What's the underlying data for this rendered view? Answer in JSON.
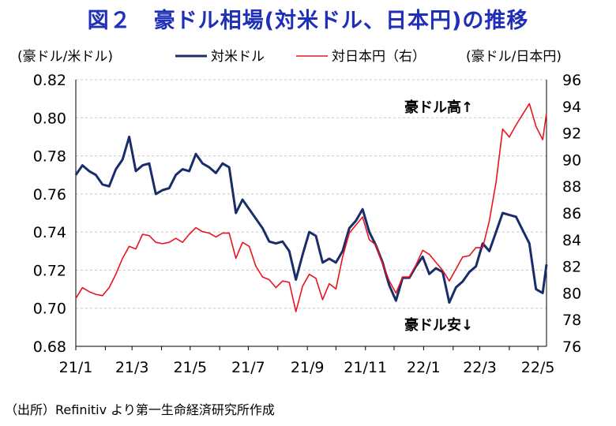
{
  "title": "図２　豪ドル相場(対米ドル、日本円)の推移",
  "source": "（出所）Refinitiv より第一生命経済研究所作成",
  "chart_data": {
    "type": "line",
    "left_axis_label": "(豪ドル/米ドル)",
    "right_axis_label": "(豪ドル/日本円)",
    "left_ylim": [
      0.68,
      0.82
    ],
    "left_ticks": [
      "0.68",
      "0.70",
      "0.72",
      "0.74",
      "0.76",
      "0.78",
      "0.80",
      "0.82"
    ],
    "right_ylim": [
      76,
      96
    ],
    "right_ticks": [
      "76",
      "78",
      "80",
      "82",
      "84",
      "86",
      "88",
      "90",
      "92",
      "94",
      "96"
    ],
    "x_ticks": [
      "21/1",
      "21/3",
      "21/5",
      "21/7",
      "21/9",
      "21/11",
      "22/1",
      "22/3",
      "22/5"
    ],
    "x_range": [
      "2021-01-01",
      "2022-05-10"
    ],
    "grid": "horizontal dashed",
    "legend_position": "top",
    "annotations": {
      "high": "豪ドル高↑",
      "low": "豪ドル安↓"
    },
    "series": [
      {
        "name": "対米ドル",
        "axis": "left",
        "color": "#1a2d6b",
        "points": [
          [
            "2021-01-01",
            0.77
          ],
          [
            "2021-01-08",
            0.775
          ],
          [
            "2021-01-15",
            0.772
          ],
          [
            "2021-01-22",
            0.77
          ],
          [
            "2021-01-29",
            0.765
          ],
          [
            "2021-02-05",
            0.764
          ],
          [
            "2021-02-12",
            0.773
          ],
          [
            "2021-02-19",
            0.778
          ],
          [
            "2021-02-26",
            0.79
          ],
          [
            "2021-03-05",
            0.772
          ],
          [
            "2021-03-12",
            0.775
          ],
          [
            "2021-03-19",
            0.776
          ],
          [
            "2021-03-26",
            0.76
          ],
          [
            "2021-04-02",
            0.762
          ],
          [
            "2021-04-09",
            0.763
          ],
          [
            "2021-04-16",
            0.77
          ],
          [
            "2021-04-23",
            0.773
          ],
          [
            "2021-04-30",
            0.772
          ],
          [
            "2021-05-07",
            0.781
          ],
          [
            "2021-05-14",
            0.776
          ],
          [
            "2021-05-21",
            0.774
          ],
          [
            "2021-05-28",
            0.771
          ],
          [
            "2021-06-04",
            0.776
          ],
          [
            "2021-06-11",
            0.774
          ],
          [
            "2021-06-18",
            0.75
          ],
          [
            "2021-06-25",
            0.757
          ],
          [
            "2021-07-02",
            0.752
          ],
          [
            "2021-07-09",
            0.747
          ],
          [
            "2021-07-16",
            0.742
          ],
          [
            "2021-07-23",
            0.735
          ],
          [
            "2021-07-30",
            0.734
          ],
          [
            "2021-08-06",
            0.735
          ],
          [
            "2021-08-13",
            0.73
          ],
          [
            "2021-08-20",
            0.715
          ],
          [
            "2021-08-27",
            0.728
          ],
          [
            "2021-09-03",
            0.74
          ],
          [
            "2021-09-10",
            0.738
          ],
          [
            "2021-09-17",
            0.724
          ],
          [
            "2021-09-24",
            0.726
          ],
          [
            "2021-10-01",
            0.724
          ],
          [
            "2021-10-08",
            0.73
          ],
          [
            "2021-10-15",
            0.742
          ],
          [
            "2021-10-22",
            0.746
          ],
          [
            "2021-10-29",
            0.752
          ],
          [
            "2021-11-05",
            0.74
          ],
          [
            "2021-11-12",
            0.733
          ],
          [
            "2021-11-19",
            0.724
          ],
          [
            "2021-11-26",
            0.712
          ],
          [
            "2021-12-03",
            0.704
          ],
          [
            "2021-12-10",
            0.716
          ],
          [
            "2021-12-17",
            0.716
          ],
          [
            "2021-12-24",
            0.722
          ],
          [
            "2021-12-31",
            0.727
          ],
          [
            "2022-01-07",
            0.718
          ],
          [
            "2022-01-14",
            0.721
          ],
          [
            "2022-01-21",
            0.719
          ],
          [
            "2022-01-28",
            0.703
          ],
          [
            "2022-02-04",
            0.711
          ],
          [
            "2022-02-11",
            0.714
          ],
          [
            "2022-02-18",
            0.719
          ],
          [
            "2022-02-25",
            0.722
          ],
          [
            "2022-03-04",
            0.734
          ],
          [
            "2022-03-11",
            0.73
          ],
          [
            "2022-03-18",
            0.74
          ],
          [
            "2022-03-25",
            0.75
          ],
          [
            "2022-04-01",
            0.749
          ],
          [
            "2022-04-08",
            0.748
          ],
          [
            "2022-04-15",
            0.741
          ],
          [
            "2022-04-22",
            0.734
          ],
          [
            "2022-04-29",
            0.71
          ],
          [
            "2022-05-06",
            0.708
          ],
          [
            "2022-05-10",
            0.723
          ]
        ]
      },
      {
        "name": "対日本円（右）",
        "axis": "right",
        "color": "#e8141e",
        "points": [
          [
            "2021-01-01",
            79.6
          ],
          [
            "2021-01-08",
            80.4
          ],
          [
            "2021-01-15",
            80.1
          ],
          [
            "2021-01-22",
            79.9
          ],
          [
            "2021-01-29",
            79.8
          ],
          [
            "2021-02-05",
            80.4
          ],
          [
            "2021-02-12",
            81.4
          ],
          [
            "2021-02-19",
            82.6
          ],
          [
            "2021-02-26",
            83.5
          ],
          [
            "2021-03-05",
            83.3
          ],
          [
            "2021-03-12",
            84.4
          ],
          [
            "2021-03-19",
            84.3
          ],
          [
            "2021-03-26",
            83.8
          ],
          [
            "2021-04-02",
            83.7
          ],
          [
            "2021-04-09",
            83.8
          ],
          [
            "2021-04-16",
            84.1
          ],
          [
            "2021-04-23",
            83.8
          ],
          [
            "2021-04-30",
            84.4
          ],
          [
            "2021-05-07",
            84.9
          ],
          [
            "2021-05-14",
            84.6
          ],
          [
            "2021-05-21",
            84.5
          ],
          [
            "2021-05-28",
            84.2
          ],
          [
            "2021-06-04",
            84.5
          ],
          [
            "2021-06-11",
            84.5
          ],
          [
            "2021-06-18",
            82.6
          ],
          [
            "2021-06-25",
            83.8
          ],
          [
            "2021-07-02",
            83.5
          ],
          [
            "2021-07-09",
            82.0
          ],
          [
            "2021-07-16",
            81.2
          ],
          [
            "2021-07-23",
            81.0
          ],
          [
            "2021-07-30",
            80.4
          ],
          [
            "2021-08-06",
            80.9
          ],
          [
            "2021-08-13",
            80.8
          ],
          [
            "2021-08-20",
            78.6
          ],
          [
            "2021-08-27",
            80.5
          ],
          [
            "2021-09-03",
            81.4
          ],
          [
            "2021-09-10",
            81.1
          ],
          [
            "2021-09-17",
            79.5
          ],
          [
            "2021-09-24",
            80.7
          ],
          [
            "2021-10-01",
            80.3
          ],
          [
            "2021-10-08",
            82.7
          ],
          [
            "2021-10-15",
            84.5
          ],
          [
            "2021-10-22",
            85.1
          ],
          [
            "2021-10-29",
            85.7
          ],
          [
            "2021-11-05",
            84.0
          ],
          [
            "2021-11-12",
            83.6
          ],
          [
            "2021-11-19",
            82.2
          ],
          [
            "2021-11-26",
            80.9
          ],
          [
            "2021-12-03",
            80.0
          ],
          [
            "2021-12-10",
            81.2
          ],
          [
            "2021-12-17",
            81.2
          ],
          [
            "2021-12-24",
            82.1
          ],
          [
            "2021-12-31",
            83.2
          ],
          [
            "2022-01-07",
            82.9
          ],
          [
            "2022-01-14",
            82.3
          ],
          [
            "2022-01-21",
            81.7
          ],
          [
            "2022-01-28",
            80.9
          ],
          [
            "2022-02-04",
            81.8
          ],
          [
            "2022-02-11",
            82.7
          ],
          [
            "2022-02-18",
            82.8
          ],
          [
            "2022-02-25",
            83.4
          ],
          [
            "2022-03-04",
            83.4
          ],
          [
            "2022-03-11",
            85.4
          ],
          [
            "2022-03-18",
            88.3
          ],
          [
            "2022-03-25",
            92.3
          ],
          [
            "2022-04-01",
            91.7
          ],
          [
            "2022-04-08",
            92.6
          ],
          [
            "2022-04-15",
            93.4
          ],
          [
            "2022-04-22",
            94.2
          ],
          [
            "2022-04-29",
            92.5
          ],
          [
            "2022-05-06",
            91.5
          ],
          [
            "2022-05-10",
            93.5
          ]
        ]
      }
    ]
  }
}
